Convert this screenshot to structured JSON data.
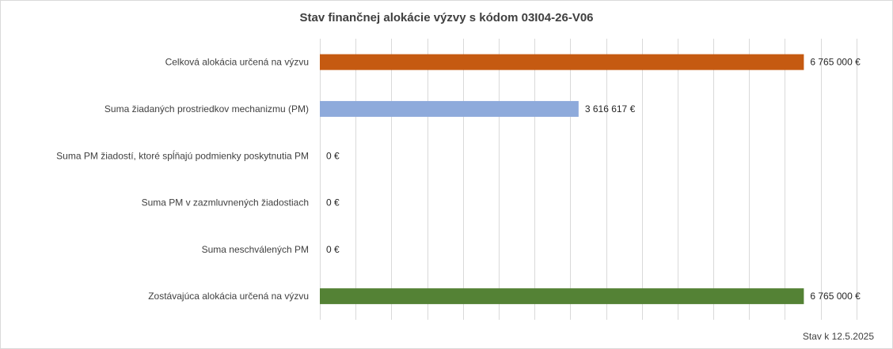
{
  "chart_data": {
    "type": "bar",
    "orientation": "horizontal",
    "title": "Stav finančnej alokácie výzvy s kódom 03I04-26-V06",
    "categories": [
      "Celková alokácia určená na výzvu",
      "Suma žiadaných prostriedkov mechanizmu (PM)",
      "Suma PM žiadostí, ktoré spĺňajú podmienky poskytnutia PM",
      "Suma PM v zazmluvnených žiadostiach",
      "Suma neschválených PM",
      "Zostávajúca alokácia určená na výzvu"
    ],
    "values": [
      6765000,
      3616617,
      0,
      0,
      0,
      6765000
    ],
    "data_labels": [
      "6 765 000 €",
      "3 616 617 €",
      "0 €",
      "0 €",
      "0 €",
      "6 765 000 €"
    ],
    "colors": [
      "#c55a11",
      "#8eaadb",
      "#8eaadb",
      "#8eaadb",
      "#8eaadb",
      "#548235"
    ],
    "xlim": [
      0,
      8000000
    ],
    "x_major_step": 500000,
    "x_axis_tick_labels_visible": false,
    "grid": "vertical",
    "legend": "none",
    "xlabel": "",
    "ylabel": "",
    "footnote": "Stav k 12.5.2025"
  }
}
